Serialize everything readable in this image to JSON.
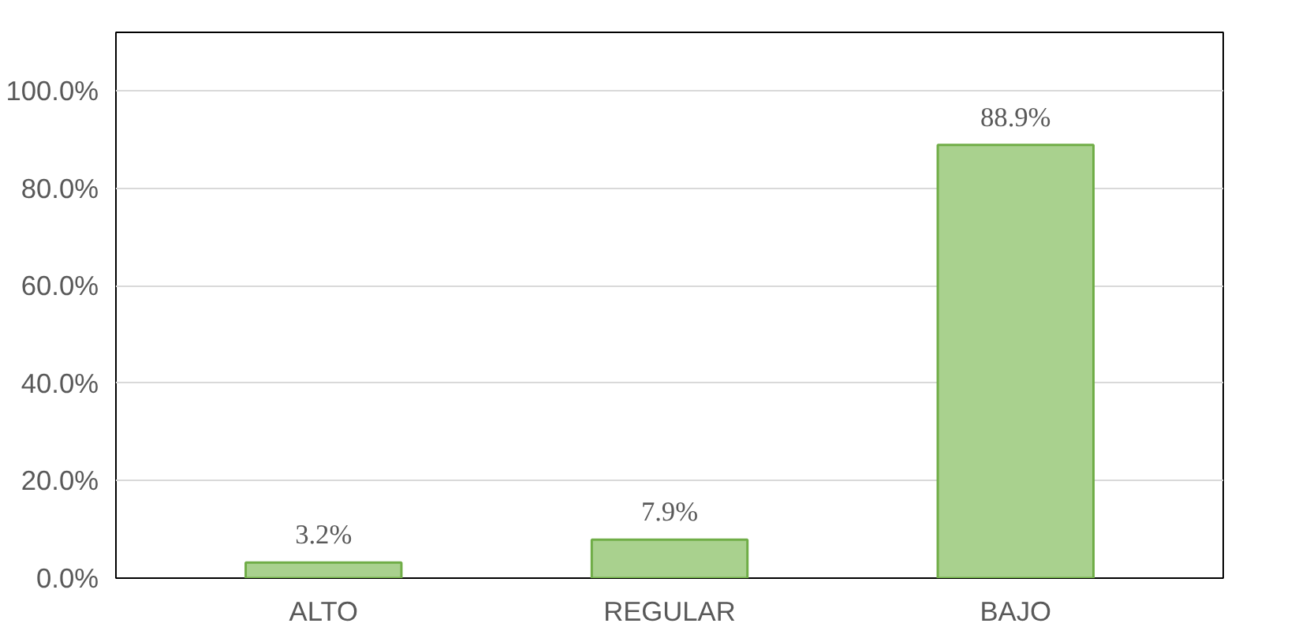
{
  "chart_data": {
    "type": "bar",
    "categories": [
      "ALTO",
      "REGULAR",
      "BAJO"
    ],
    "values": [
      3.2,
      7.9,
      88.9
    ],
    "value_labels": [
      "3.2%",
      "7.9%",
      "88.9%"
    ],
    "color": "#a9d18e",
    "ylim": [
      0,
      100
    ],
    "yticks": [
      {
        "value": 0,
        "label": "0.0%"
      },
      {
        "value": 20,
        "label": "20.0%"
      },
      {
        "value": 40,
        "label": "40.0%"
      },
      {
        "value": 60,
        "label": "60.0%"
      },
      {
        "value": 80,
        "label": "80.0%"
      },
      {
        "value": 100,
        "label": "100.0%"
      }
    ],
    "grid": "y"
  }
}
